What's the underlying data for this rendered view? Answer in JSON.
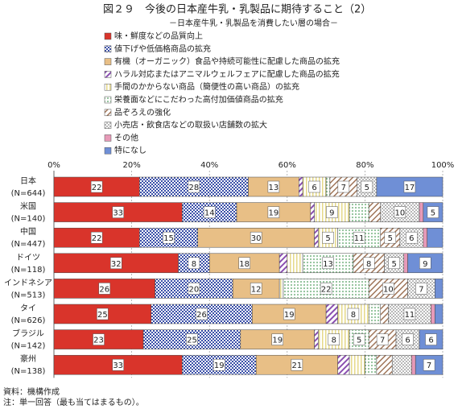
{
  "chart_data": {
    "type": "stacked_bar_horizontal",
    "title": "図２９　今後の日本産牛乳・乳製品に期待すること（2）",
    "subtitle": "－日本産牛乳・乳製品を消費したい層の場合－",
    "categories": [
      "日本",
      "米国",
      "中国",
      "ドイツ",
      "インドネシア",
      "タイ",
      "ブラジル",
      "豪州"
    ],
    "sample_sizes": [
      "(N=644)",
      "(N=140)",
      "(N=447)",
      "(N=118)",
      "(N=513)",
      "(N=626)",
      "(N=142)",
      "(N=138)"
    ],
    "xlim": [
      0,
      100
    ],
    "xticks": [
      {
        "value": 0,
        "label": "0%"
      },
      {
        "value": 20,
        "label": "20%"
      },
      {
        "value": 40,
        "label": "40%"
      },
      {
        "value": 60,
        "label": "60%"
      },
      {
        "value": 80,
        "label": "80%"
      },
      {
        "value": 100,
        "label": "100%"
      }
    ],
    "grid": true,
    "series": [
      {
        "name": "味・鮮度などの品質向上",
        "color": "#d9342b",
        "values": [
          22,
          33,
          22,
          32,
          26,
          25,
          23,
          33
        ],
        "value_labels": [
          22,
          33,
          22,
          32,
          26,
          25,
          23,
          33
        ]
      },
      {
        "name": "値下げや低価格商品の拡充",
        "color": "#3a4fa8",
        "values": [
          28,
          14,
          15,
          8,
          20,
          26,
          25,
          19
        ],
        "value_labels": [
          28,
          14,
          15,
          8,
          20,
          26,
          25,
          19
        ]
      },
      {
        "name": "有機（オーガニック）食品や持続可能性に配慮した商品の拡充",
        "color": "#e8bf86",
        "values": [
          13,
          19,
          30,
          18,
          12,
          19,
          19,
          21
        ],
        "value_labels": [
          13,
          19,
          30,
          18,
          12,
          19,
          19,
          21
        ]
      },
      {
        "name": "ハラル対応またはアニマルウェルフェアに配慮した商品の拡充",
        "color": "#8a4fb0",
        "values": [
          1,
          1,
          1,
          2,
          0,
          3,
          1,
          3
        ],
        "value_labels": [
          null,
          null,
          null,
          null,
          null,
          null,
          null,
          null
        ]
      },
      {
        "name": "手間のかからない商品（簡便性の高い商品）の拡充",
        "color": "#e6d98a",
        "values": [
          6,
          9,
          5,
          4,
          1,
          8,
          8,
          4
        ],
        "value_labels": [
          6,
          9,
          5,
          null,
          null,
          8,
          8,
          null
        ]
      },
      {
        "name": "栄養面などにこだわった高付加価値商品の拡充",
        "color": "#bcdcc0",
        "values": [
          1,
          5,
          11,
          13,
          22,
          3,
          5,
          3
        ],
        "value_labels": [
          null,
          null,
          11,
          13,
          22,
          null,
          5,
          null
        ]
      },
      {
        "name": "品ぞろえの強化",
        "color": "#a0765a",
        "values": [
          7,
          3,
          5,
          8,
          10,
          2,
          7,
          4
        ],
        "value_labels": [
          7,
          null,
          5,
          8,
          10,
          null,
          7,
          null
        ]
      },
      {
        "name": "小売店・飲食店などの取扱い店舗数の拡大",
        "color": "#b8b8b8",
        "values": [
          5,
          10,
          6,
          5,
          7,
          11,
          6,
          5
        ],
        "value_labels": [
          5,
          10,
          6,
          5,
          7,
          11,
          6,
          null
        ]
      },
      {
        "name": "その他",
        "color": "#e79ab8",
        "values": [
          0,
          1,
          1,
          1,
          0,
          1,
          0,
          1
        ],
        "value_labels": [
          null,
          null,
          null,
          null,
          null,
          null,
          null,
          null
        ]
      },
      {
        "name": "特になし",
        "color": "#6f8fd6",
        "values": [
          17,
          5,
          4,
          9,
          2,
          2,
          6,
          7
        ],
        "value_labels": [
          17,
          5,
          null,
          9,
          null,
          null,
          6,
          7
        ]
      }
    ],
    "notes": [
      "資料：機構作成",
      "注：単一回答（最も当てはまるもの）。"
    ]
  }
}
